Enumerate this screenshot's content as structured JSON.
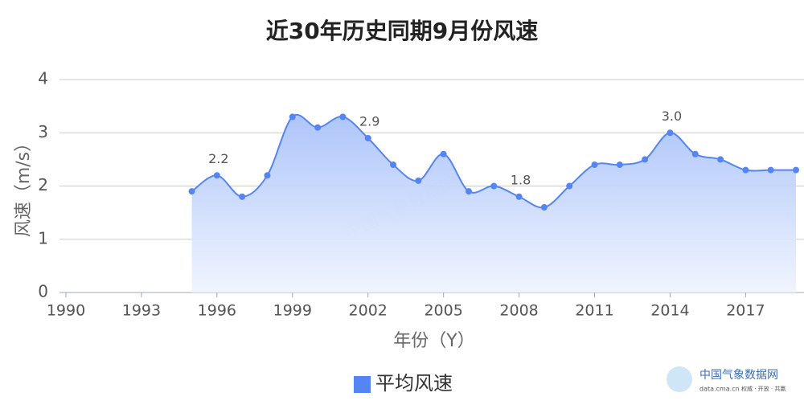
{
  "chart_data": {
    "type": "area",
    "title": "近30年历史同期9月份风速",
    "x_label": "年份（Y）",
    "y_label": "风速（m/s）",
    "x": [
      1995,
      1996,
      1997,
      1998,
      1999,
      2000,
      2001,
      2002,
      2003,
      2004,
      2005,
      2006,
      2007,
      2008,
      2009,
      2010,
      2011,
      2012,
      2013,
      2014,
      2015,
      2016,
      2017,
      2018,
      2019
    ],
    "series": [
      {
        "name": "平均风速",
        "color": "#5585f2",
        "values": [
          1.9,
          2.2,
          1.8,
          2.2,
          3.3,
          3.1,
          3.3,
          2.9,
          2.4,
          2.1,
          2.6,
          1.9,
          2.0,
          1.8,
          1.6,
          2.0,
          2.4,
          2.4,
          2.5,
          3.0,
          2.6,
          2.5,
          2.3,
          2.3,
          2.3
        ],
        "value_labels": [
          null,
          "2.2",
          null,
          null,
          null,
          null,
          null,
          "2.9",
          null,
          null,
          null,
          null,
          null,
          "1.8",
          null,
          null,
          null,
          null,
          null,
          "3.0",
          null,
          null,
          null,
          null,
          null
        ]
      }
    ],
    "xlim": [
      1990,
      2019
    ],
    "xticks": [
      1990,
      1993,
      1996,
      1999,
      2002,
      2005,
      2008,
      2011,
      2014,
      2017
    ],
    "ylim": [
      0,
      4
    ],
    "yticks": [
      0,
      1,
      2,
      3,
      4
    ],
    "grid": true,
    "legend": "bottom"
  },
  "brand": {
    "name": "中国气象数据网",
    "url": "data.cma.cn",
    "slogan": "权威 · 开放 · 共赢"
  }
}
